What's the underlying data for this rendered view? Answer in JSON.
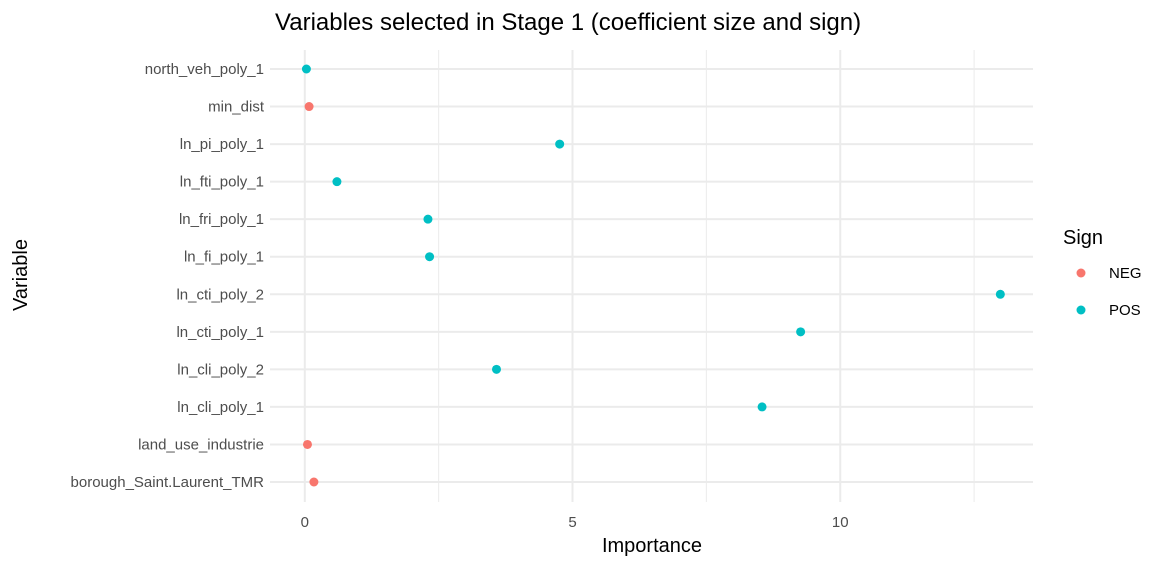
{
  "chart_data": {
    "type": "scatter",
    "title": "Variables selected in Stage 1 (coefficient size and sign)",
    "xlabel": "Importance",
    "ylabel": "Variable",
    "xlim": [
      -0.65,
      13.6
    ],
    "x_ticks": [
      0,
      5,
      10
    ],
    "x_tick_labels": [
      "0",
      "5",
      "10"
    ],
    "x_minor_ticks": [
      2.5,
      7.5,
      12.5
    ],
    "grid": true,
    "legend": {
      "title": "Sign",
      "position": "right",
      "entries": [
        {
          "label": "NEG",
          "color": "#F8766D"
        },
        {
          "label": "POS",
          "color": "#00BFC4"
        }
      ]
    },
    "categories": [
      "north_veh_poly_1",
      "min_dist",
      "ln_pi_poly_1",
      "ln_fti_poly_1",
      "ln_fri_poly_1",
      "ln_fi_poly_1",
      "ln_cti_poly_2",
      "ln_cti_poly_1",
      "ln_cli_poly_2",
      "ln_cli_poly_1",
      "land_use_industrie",
      "borough_Saint.Laurent_TMR"
    ],
    "points": [
      {
        "variable": "north_veh_poly_1",
        "value": 0.03,
        "sign": "POS"
      },
      {
        "variable": "min_dist",
        "value": 0.08,
        "sign": "NEG"
      },
      {
        "variable": "ln_pi_poly_1",
        "value": 4.76,
        "sign": "POS"
      },
      {
        "variable": "ln_fti_poly_1",
        "value": 0.6,
        "sign": "POS"
      },
      {
        "variable": "ln_fri_poly_1",
        "value": 2.3,
        "sign": "POS"
      },
      {
        "variable": "ln_fi_poly_1",
        "value": 2.33,
        "sign": "POS"
      },
      {
        "variable": "ln_cti_poly_2",
        "value": 12.99,
        "sign": "POS"
      },
      {
        "variable": "ln_cti_poly_1",
        "value": 9.26,
        "sign": "POS"
      },
      {
        "variable": "ln_cli_poly_2",
        "value": 3.58,
        "sign": "POS"
      },
      {
        "variable": "ln_cli_poly_1",
        "value": 8.54,
        "sign": "POS"
      },
      {
        "variable": "land_use_industrie",
        "value": 0.05,
        "sign": "NEG"
      },
      {
        "variable": "borough_Saint.Laurent_TMR",
        "value": 0.17,
        "sign": "NEG"
      }
    ]
  }
}
